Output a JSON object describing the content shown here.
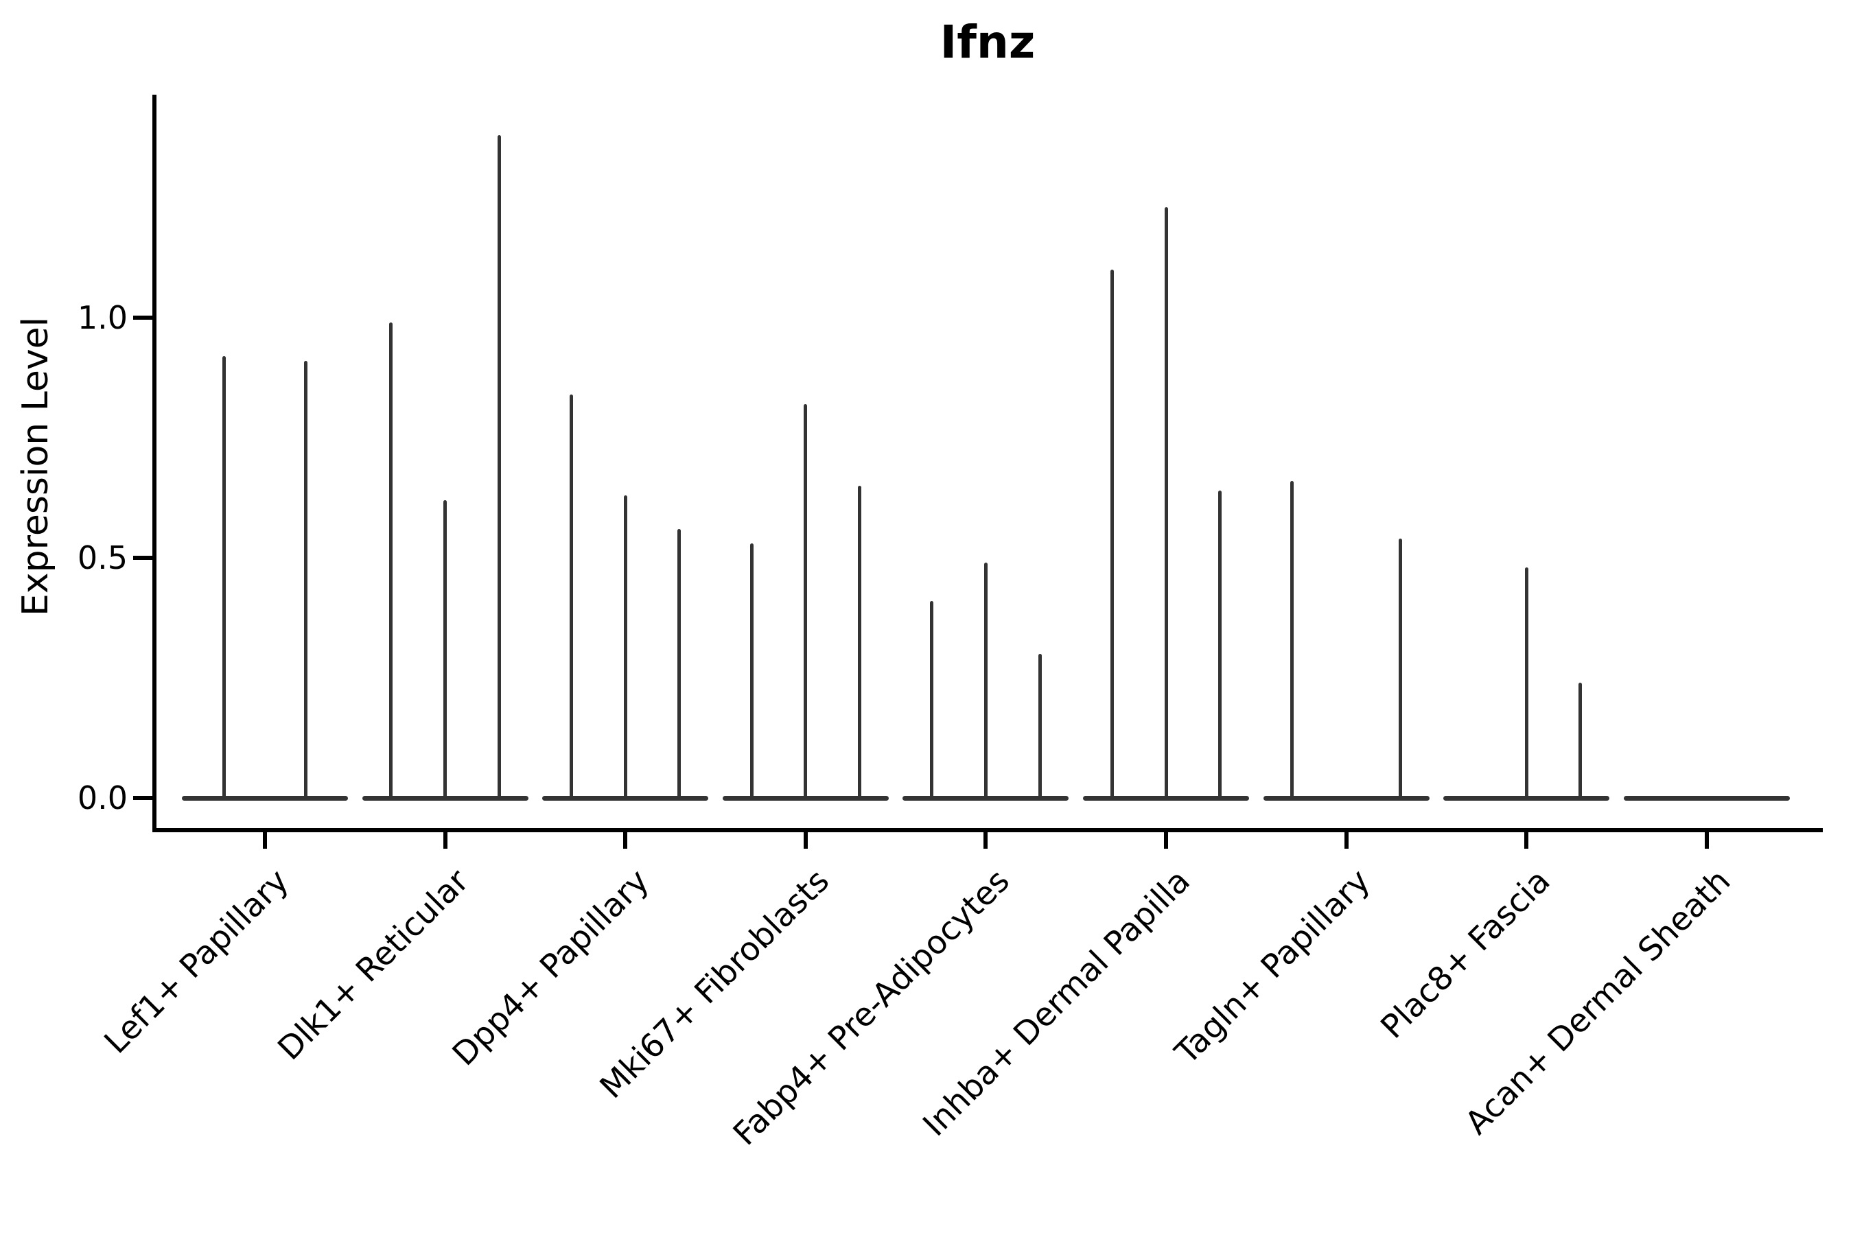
{
  "chart_data": {
    "type": "violin",
    "title": "Ifnz",
    "xlabel": "",
    "ylabel": "Expression Level",
    "ylim": [
      0,
      1.46
    ],
    "yticks": [
      {
        "label": "0.0",
        "value": 0.0
      },
      {
        "label": "0.5",
        "value": 0.5
      },
      {
        "label": "1.0",
        "value": 1.0
      }
    ],
    "grid": "off",
    "legend": "none",
    "violin_color": "#333333",
    "axis_color": "#000000",
    "categories": [
      "Lef1+ Papillary",
      "Dlk1+ Reticular",
      "Dpp4+ Papillary",
      "Mki67+ Fibroblasts",
      "Fabp4+ Pre-Adipocytes",
      "Inhba+ Dermal Papilla",
      "Tagln+ Papillary",
      "Plac8+ Fascia",
      "Acan+ Dermal Sheath"
    ],
    "groups": [
      {
        "category": "Lef1+ Papillary",
        "spikes": [
          {
            "pos": -0.225,
            "max": 0.92
          },
          {
            "pos": 0.225,
            "max": 0.91
          }
        ]
      },
      {
        "category": "Dlk1+ Reticular",
        "spikes": [
          {
            "pos": -0.3,
            "max": 0.99
          },
          {
            "pos": 0.0,
            "max": 0.62
          },
          {
            "pos": 0.3,
            "max": 1.38
          }
        ]
      },
      {
        "category": "Dpp4+ Papillary",
        "spikes": [
          {
            "pos": -0.3,
            "max": 0.84
          },
          {
            "pos": 0.0,
            "max": 0.63
          },
          {
            "pos": 0.3,
            "max": 0.56
          }
        ]
      },
      {
        "category": "Mki67+ Fibroblasts",
        "spikes": [
          {
            "pos": -0.3,
            "max": 0.53
          },
          {
            "pos": 0.0,
            "max": 0.82
          },
          {
            "pos": 0.3,
            "max": 0.65
          }
        ]
      },
      {
        "category": "Fabp4+ Pre-Adipocytes",
        "spikes": [
          {
            "pos": -0.3,
            "max": 0.41
          },
          {
            "pos": 0.0,
            "max": 0.49
          },
          {
            "pos": 0.3,
            "max": 0.3
          }
        ]
      },
      {
        "category": "Inhba+ Dermal Papilla",
        "spikes": [
          {
            "pos": -0.3,
            "max": 1.1
          },
          {
            "pos": 0.0,
            "max": 1.23
          },
          {
            "pos": 0.3,
            "max": 0.64
          }
        ]
      },
      {
        "category": "Tagln+ Papillary",
        "spikes": [
          {
            "pos": -0.3,
            "max": 0.66
          },
          {
            "pos": 0.3,
            "max": 0.54
          }
        ]
      },
      {
        "category": "Plac8+ Fascia",
        "spikes": [
          {
            "pos": 0.0,
            "max": 0.48
          },
          {
            "pos": 0.3,
            "max": 0.24
          }
        ]
      },
      {
        "category": "Acan+ Dermal Sheath",
        "spikes": []
      }
    ]
  }
}
